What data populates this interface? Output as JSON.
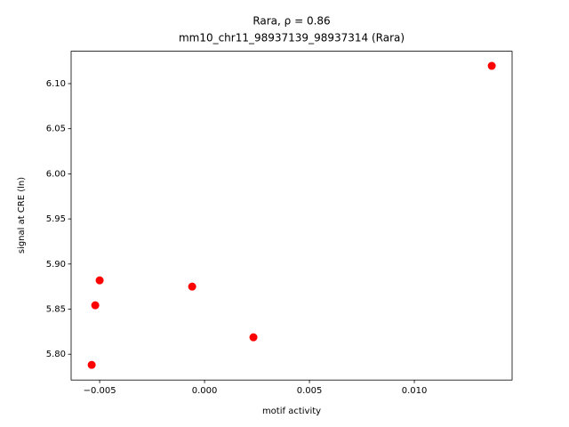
{
  "chart_data": {
    "type": "scatter",
    "title": "Rara, ρ = 0.86",
    "subtitle": "mm10_chr11_98937139_98937314 (Rara)",
    "x_label": "motif activity",
    "y_label": "signal at CRE (ln)",
    "x": [
      0.01369,
      -0.005,
      -0.00059,
      -0.00521,
      0.00233,
      -0.00538
    ],
    "series": [
      {
        "color": "#ff0000",
        "values": [
          6.1197,
          5.8819,
          5.875,
          5.8543,
          5.8188,
          5.7882
        ]
      }
    ],
    "xlim": [
      -0.00636,
      0.01466
    ],
    "ylim": [
      5.7714,
      6.1359
    ],
    "xticks": [
      {
        "value": -0.005,
        "label": "−0.005"
      },
      {
        "value": 0,
        "label": "0.000"
      },
      {
        "value": 0.005,
        "label": "0.005"
      },
      {
        "value": 0.01,
        "label": "0.010"
      }
    ],
    "yticks": [
      {
        "value": 5.8,
        "label": "5.80"
      },
      {
        "value": 5.85,
        "label": "5.85"
      },
      {
        "value": 5.9,
        "label": "5.90"
      },
      {
        "value": 5.95,
        "label": "5.95"
      },
      {
        "value": 6.0,
        "label": "6.00"
      },
      {
        "value": 6.05,
        "label": "6.05"
      },
      {
        "value": 6.1,
        "label": "6.10"
      }
    ],
    "grid": false
  }
}
